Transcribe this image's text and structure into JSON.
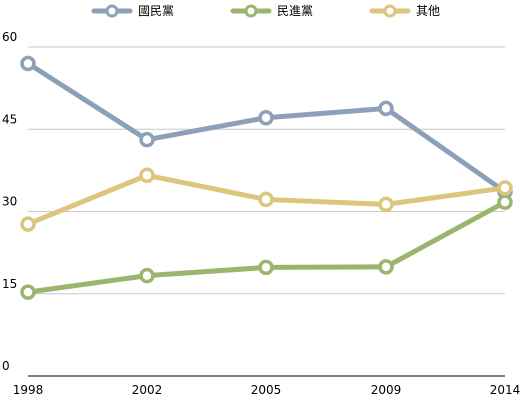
{
  "chart_data": {
    "type": "line",
    "title": "",
    "xlabel": "",
    "ylabel": "",
    "x": [
      "1998",
      "2002",
      "2005",
      "2009",
      "2014"
    ],
    "ylim": [
      0,
      60
    ],
    "yticks": [
      0,
      15,
      30,
      45,
      60
    ],
    "grid": true,
    "legend_position": "top",
    "series": [
      {
        "name": "國民黨",
        "color": "#8da0b9",
        "values": [
          57.0,
          43.1,
          47.1,
          48.8,
          33.6
        ]
      },
      {
        "name": "民進黨",
        "color": "#9bb56f",
        "values": [
          15.3,
          18.3,
          19.8,
          19.9,
          31.7
        ]
      },
      {
        "name": "其他",
        "color": "#dcc57c",
        "values": [
          27.7,
          36.6,
          32.2,
          31.3,
          34.3
        ]
      }
    ]
  }
}
